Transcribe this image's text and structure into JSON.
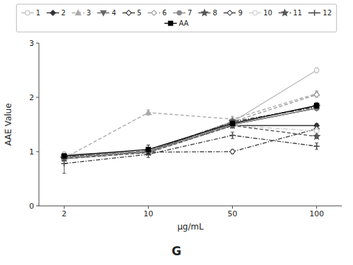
{
  "chart_data": {
    "type": "line",
    "title": "G",
    "x_label": "μg/mL",
    "y_label": "AAE Value",
    "categories": [
      "2",
      "10",
      "50",
      "100"
    ],
    "ylim": [
      0,
      3
    ],
    "yticks": [
      0,
      1,
      2,
      3
    ],
    "grid": false,
    "legend": "top",
    "series": [
      {
        "name": "1",
        "color": "#bbbbbb",
        "marker": "circle-open",
        "line_style": "solid",
        "values": [
          0.95,
          1.0,
          1.55,
          2.5
        ],
        "errors": [
          0.05,
          0.05,
          0.05,
          0.05
        ]
      },
      {
        "name": "2",
        "color": "#333333",
        "marker": "diamond",
        "line_style": "solid",
        "values": [
          0.88,
          0.99,
          1.48,
          1.48
        ],
        "errors": [
          0.04,
          0.04,
          0.04,
          0.04
        ]
      },
      {
        "name": "3",
        "color": "#aaaaaa",
        "marker": "triangle-up",
        "line_style": "dashed",
        "values": [
          0.88,
          1.72,
          1.6,
          2.07
        ],
        "errors": [
          0.04,
          0.05,
          0.05,
          0.05
        ]
      },
      {
        "name": "4",
        "color": "#666666",
        "marker": "triangle-down",
        "line_style": "dashdot",
        "values": [
          0.9,
          1.01,
          1.55,
          1.82
        ],
        "errors": [
          0.04,
          0.04,
          0.04,
          0.04
        ]
      },
      {
        "name": "5",
        "color": "#333333",
        "marker": "diamond-open",
        "line_style": "solid",
        "values": [
          0.87,
          1.0,
          1.5,
          1.8
        ],
        "errors": [
          0.04,
          0.04,
          0.04,
          0.04
        ]
      },
      {
        "name": "6",
        "color": "#999999",
        "marker": "diamond-open",
        "line_style": "dashed",
        "values": [
          0.9,
          1.02,
          1.55,
          2.05
        ],
        "errors": [
          0.04,
          0.04,
          0.04,
          0.05
        ]
      },
      {
        "name": "7",
        "color": "#888888",
        "marker": "circle",
        "line_style": "solid",
        "values": [
          0.87,
          0.99,
          1.5,
          1.8
        ],
        "errors": [
          0.04,
          0.04,
          0.04,
          0.04
        ]
      },
      {
        "name": "8",
        "color": "#555555",
        "marker": "star",
        "line_style": "dashdot",
        "values": [
          0.89,
          1.0,
          1.55,
          1.83
        ],
        "errors": [
          0.04,
          0.04,
          0.04,
          0.04
        ]
      },
      {
        "name": "9",
        "color": "#444444",
        "marker": "diamond-open",
        "line_style": "dashdot",
        "values": [
          0.9,
          0.99,
          1.0,
          1.42
        ],
        "errors": [
          0.04,
          0.04,
          0.04,
          0.04
        ]
      },
      {
        "name": "10",
        "color": "#cccccc",
        "marker": "circle-open",
        "line_style": "dashdot",
        "values": [
          0.88,
          0.99,
          1.48,
          1.38
        ],
        "errors": [
          0.04,
          0.04,
          0.04,
          0.04
        ]
      },
      {
        "name": "11",
        "color": "#555555",
        "marker": "star",
        "line_style": "dashed",
        "values": [
          0.87,
          0.98,
          1.48,
          1.28
        ],
        "errors": [
          0.04,
          0.04,
          0.04,
          0.04
        ]
      },
      {
        "name": "12",
        "color": "#444444",
        "marker": "plus",
        "line_style": "dashdot",
        "values": [
          0.78,
          0.95,
          1.3,
          1.1
        ],
        "errors": [
          0.18,
          0.06,
          0.06,
          0.06
        ]
      },
      {
        "name": "AA",
        "color": "#000000",
        "marker": "square",
        "line_style": "solid",
        "values": [
          0.92,
          1.04,
          1.52,
          1.85
        ],
        "errors": [
          0.04,
          0.08,
          0.04,
          0.05
        ]
      }
    ]
  }
}
